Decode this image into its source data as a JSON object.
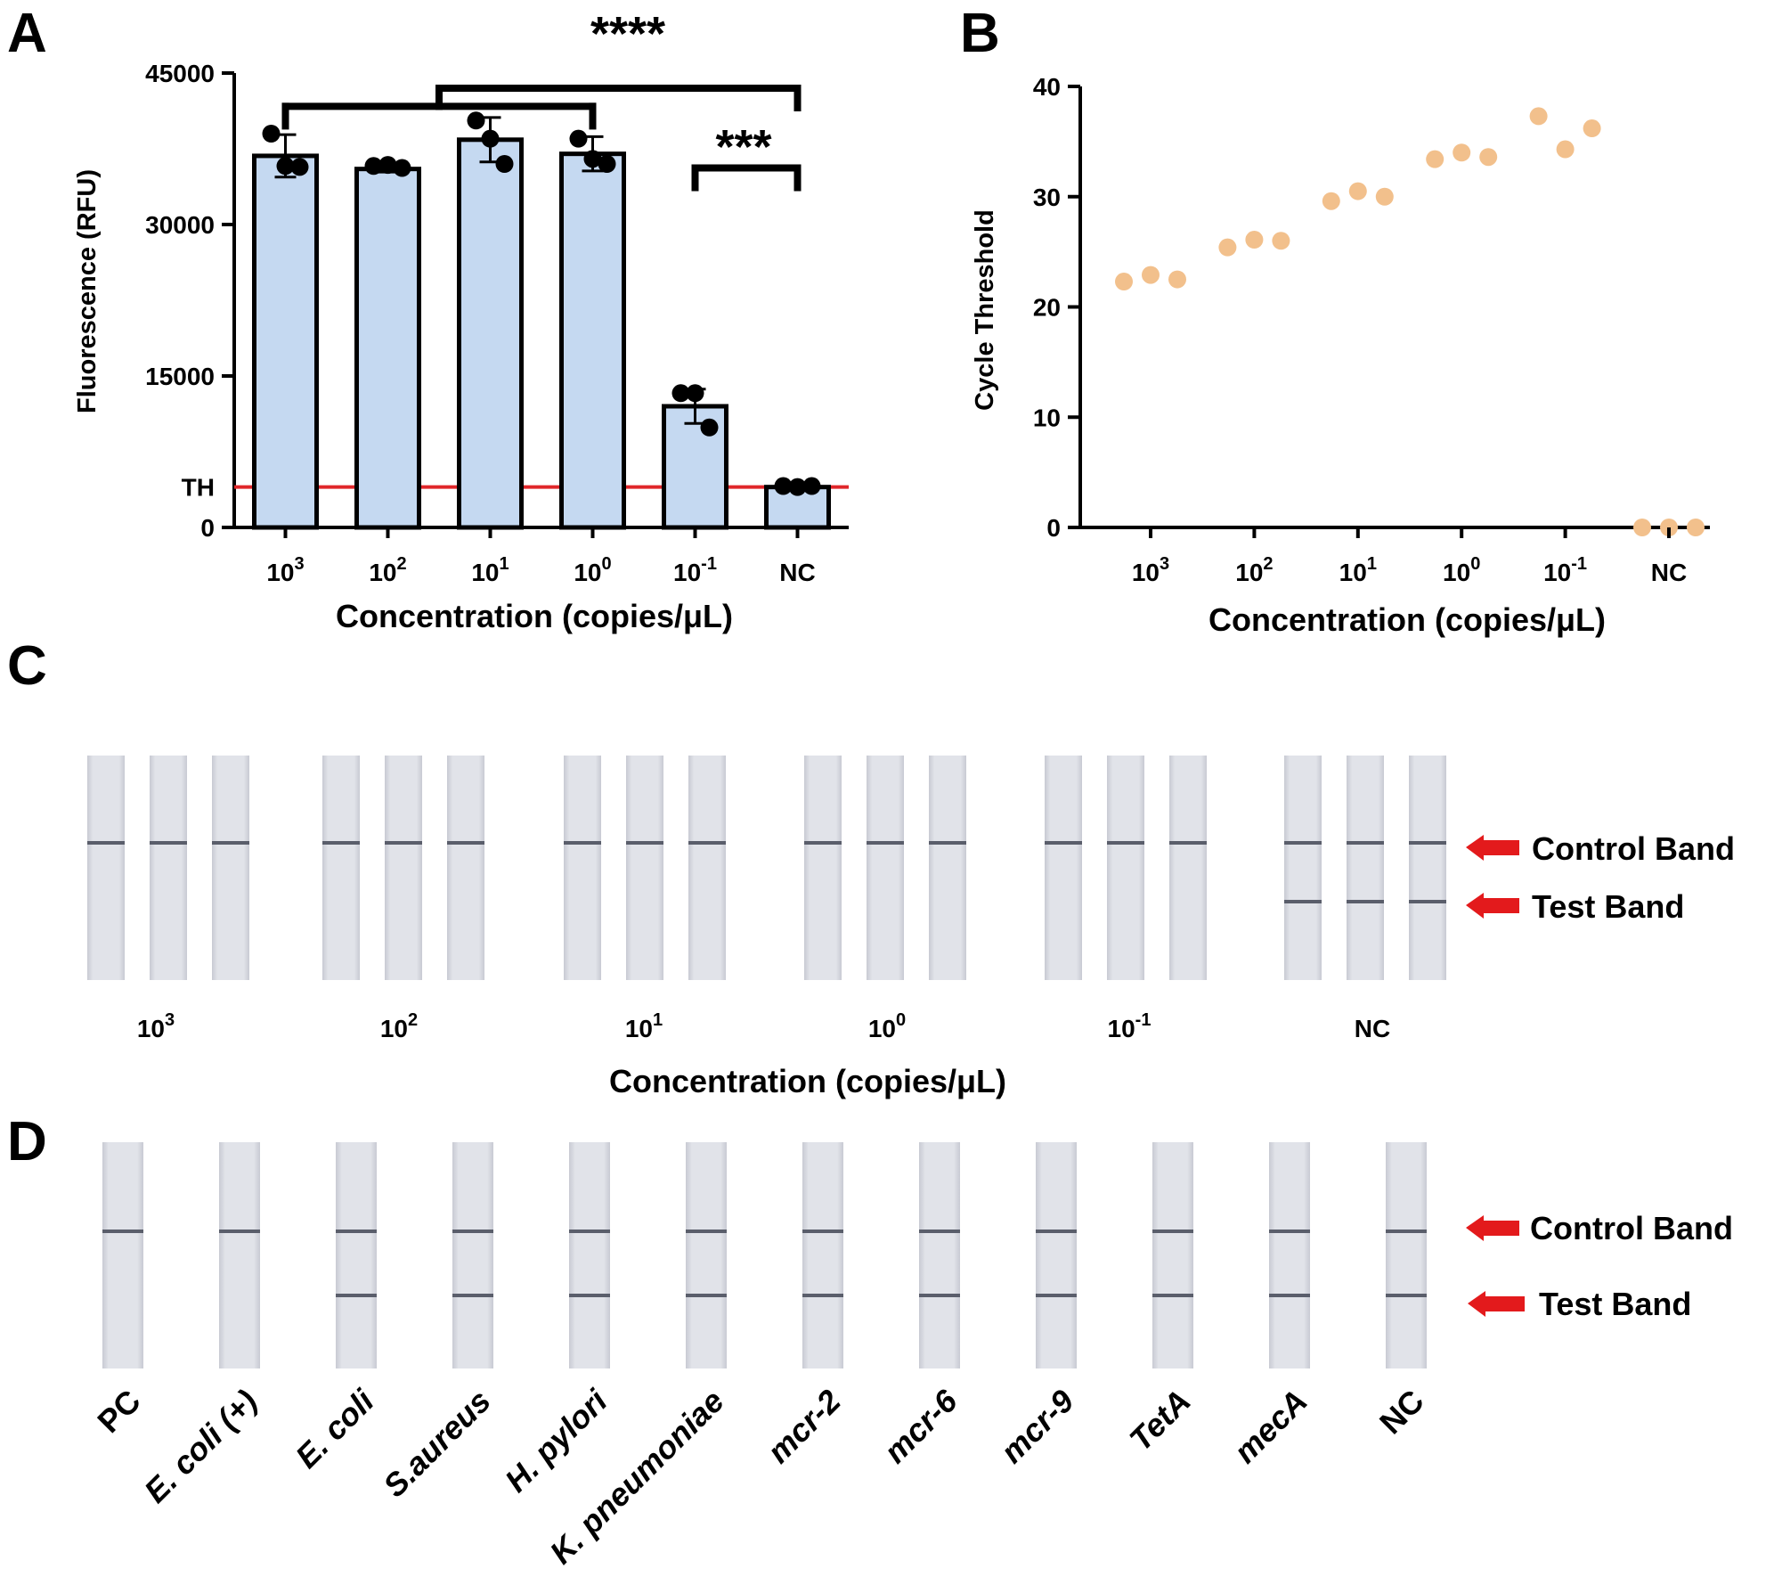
{
  "panels": {
    "a": "A",
    "b": "B",
    "c": "C",
    "d": "D"
  },
  "chart_data": [
    {
      "type": "bar",
      "panel": "A",
      "title": "",
      "categories": [
        {
          "base": "10",
          "exp": "3"
        },
        {
          "base": "10",
          "exp": "2"
        },
        {
          "base": "10",
          "exp": "1"
        },
        {
          "base": "10",
          "exp": "0"
        },
        {
          "base": "10",
          "exp": "-1"
        },
        {
          "base": "NC",
          "exp": ""
        }
      ],
      "values": [
        36800,
        35500,
        38400,
        37000,
        12000,
        4000
      ],
      "error": [
        2100,
        300,
        2200,
        1700,
        1700,
        100
      ],
      "points": [
        [
          39000,
          35800,
          35700
        ],
        [
          35800,
          35900,
          35600
        ],
        [
          40300,
          38500,
          36000
        ],
        [
          38500,
          36500,
          36000
        ],
        [
          13300,
          13300,
          9900
        ],
        [
          4100,
          4000,
          4100
        ]
      ],
      "xlabel": "Concentration (copies/μL)",
      "ylabel": "Fluorescence (RFU)",
      "ylim": [
        0,
        45000
      ],
      "yticks": [
        "0",
        "15000",
        "30000",
        "45000"
      ],
      "ytick_values": [
        0,
        15000,
        30000,
        45000
      ],
      "threshold": {
        "label": "TH",
        "value": 4000
      },
      "significance": [
        {
          "label": "****",
          "groups": "10^3–10^0 vs NC"
        },
        {
          "label": "***",
          "groups": "10^-1 vs NC"
        }
      ],
      "colors": {
        "bar": "#c5d9f1",
        "edge": "#000000",
        "threshold": "#e0262a"
      }
    },
    {
      "type": "scatter",
      "panel": "B",
      "title": "",
      "categories": [
        {
          "base": "10",
          "exp": "3"
        },
        {
          "base": "10",
          "exp": "2"
        },
        {
          "base": "10",
          "exp": "1"
        },
        {
          "base": "10",
          "exp": "0"
        },
        {
          "base": "10",
          "exp": "-1"
        },
        {
          "base": "NC",
          "exp": ""
        }
      ],
      "points": [
        [
          22.3,
          22.9,
          22.5
        ],
        [
          25.4,
          26.1,
          26.0
        ],
        [
          29.6,
          30.5,
          30.0
        ],
        [
          33.4,
          34.0,
          33.6
        ],
        [
          37.3,
          34.3,
          36.2
        ],
        [
          0,
          0,
          0
        ]
      ],
      "xlabel": "Concentration (copies/μL)",
      "ylabel": "Cycle Threshold",
      "ylim": [
        0,
        40
      ],
      "yticks": [
        "0",
        "10",
        "20",
        "30",
        "40"
      ],
      "ytick_values": [
        0,
        10,
        20,
        30,
        40
      ],
      "colors": {
        "point": "#f2c08c"
      }
    }
  ],
  "panel_c": {
    "groups": [
      {
        "base": "10",
        "exp": "3"
      },
      {
        "base": "10",
        "exp": "2"
      },
      {
        "base": "10",
        "exp": "1"
      },
      {
        "base": "10",
        "exp": "0"
      },
      {
        "base": "10",
        "exp": "-1"
      },
      {
        "base": "NC",
        "exp": ""
      }
    ],
    "test_band_visible": [
      false,
      false,
      false,
      false,
      false,
      true
    ],
    "xlabel": "Concentration (copies/μL)",
    "control_label": "Control Band",
    "test_label": "Test Band"
  },
  "panel_d": {
    "labels": [
      "PC",
      "E. coli (+)",
      "E. coli",
      "S.aureus",
      "H. pylori",
      "K. pneumoniae",
      "mcr-2",
      "mcr-6",
      "mcr-9",
      "TetA",
      "mecA",
      "NC"
    ],
    "italic": [
      false,
      true,
      true,
      true,
      true,
      true,
      true,
      true,
      true,
      true,
      true,
      false
    ],
    "test_band_visible": [
      false,
      false,
      true,
      true,
      true,
      true,
      true,
      true,
      true,
      true,
      true,
      true
    ],
    "control_label": "Control Band",
    "test_label": "Test Band"
  },
  "colors": {
    "arrow": "#e31a1c",
    "strip": "#d9dbe2",
    "band": "#5a5e6b"
  }
}
